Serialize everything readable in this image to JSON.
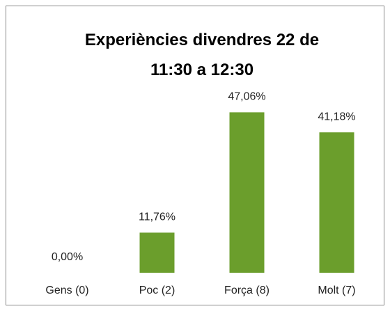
{
  "chart_data": {
    "type": "bar",
    "title": "Experiències divendres 22 de 11:30 a 12:30",
    "categories": [
      "Gens (0)",
      "Poc (2)",
      "Força (8)",
      "Molt (7)"
    ],
    "values": [
      0,
      11.76,
      47.06,
      41.18
    ],
    "value_labels": [
      "0,00%",
      "11,76%",
      "47,06%",
      "41,18%"
    ],
    "color": "#6b9e2c",
    "ylim": [
      0,
      50
    ]
  }
}
